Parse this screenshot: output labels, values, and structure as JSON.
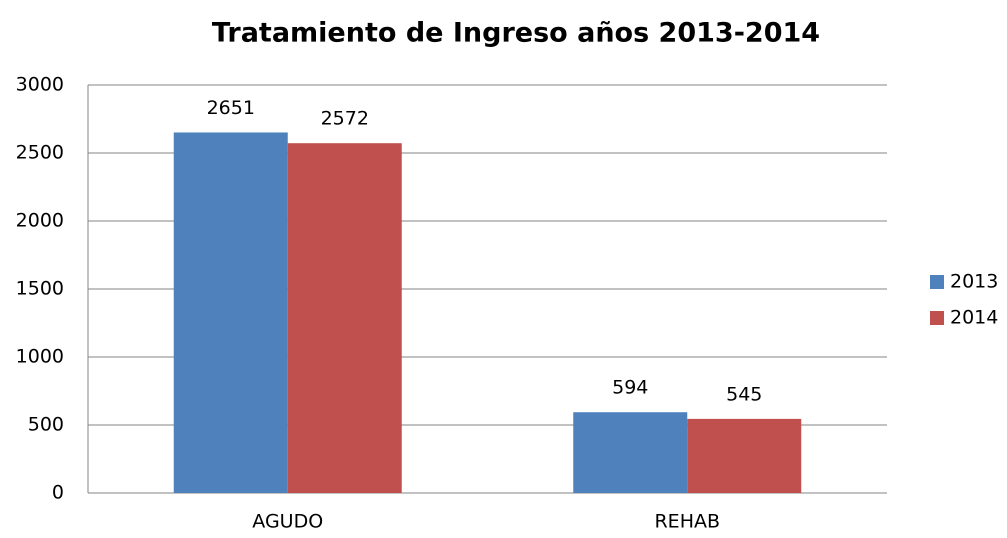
{
  "chart_data": {
    "type": "bar",
    "title": "Tratamiento de Ingreso años 2013-2014",
    "categories": [
      "AGUDO",
      "REHAB"
    ],
    "series": [
      {
        "name": "2013",
        "color": "#4f81bd",
        "values": [
          2651,
          594
        ]
      },
      {
        "name": "2014",
        "color": "#c0504d",
        "values": [
          2572,
          545
        ]
      }
    ],
    "ylim": [
      0,
      3000
    ],
    "yticks": [
      0,
      500,
      1000,
      1500,
      2000,
      2500,
      3000
    ],
    "grid": true,
    "legend": "right"
  }
}
